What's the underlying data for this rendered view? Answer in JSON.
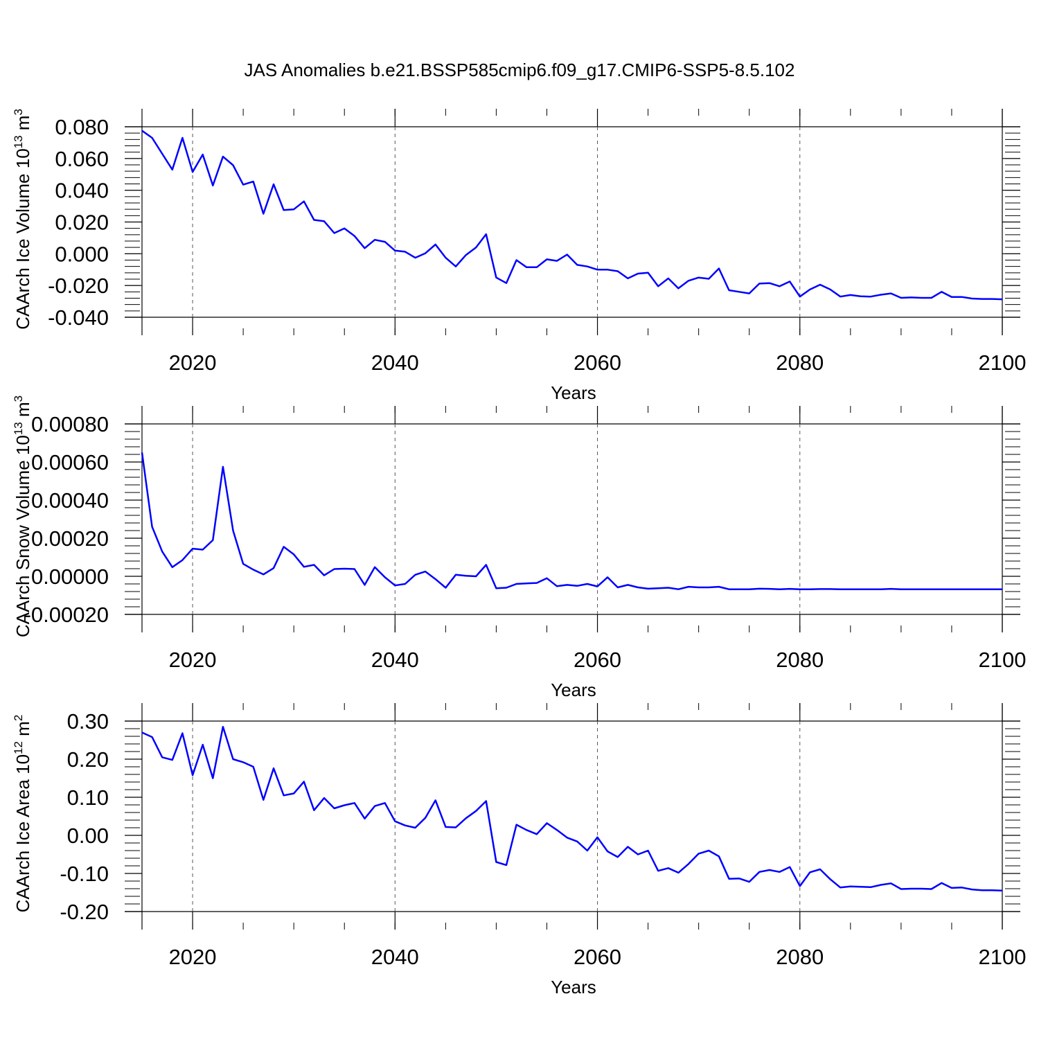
{
  "title": "JAS Anomalies b.e21.BSSP585cmip6.f09_g17.CMIP6-SSP5-8.5.102",
  "series_color": "#0000ff",
  "chart_data": [
    {
      "type": "line",
      "ylabel": {
        "base": "CAArch Ice Volume 10",
        "exp": "13",
        "unit": " m",
        "unit_exp": "3"
      },
      "xlabel": "Years",
      "xlim": [
        2015,
        2100
      ],
      "ylim": [
        -0.04,
        0.08
      ],
      "xticks": [
        2020,
        2040,
        2060,
        2080,
        2100
      ],
      "yticks": [
        -0.04,
        -0.02,
        0.0,
        0.02,
        0.04,
        0.06,
        0.08
      ],
      "ytick_labels": [
        "-0.040",
        "-0.020",
        "0.000",
        "0.020",
        "0.040",
        "0.060",
        "0.080"
      ],
      "x_start": 2015,
      "values": [
        0.0775,
        0.073,
        0.063,
        0.053,
        0.073,
        0.0515,
        0.0625,
        0.043,
        0.0612,
        0.0558,
        0.0435,
        0.0455,
        0.0252,
        0.0438,
        0.0275,
        0.028,
        0.033,
        0.0213,
        0.0205,
        0.013,
        0.016,
        0.0112,
        0.0035,
        0.0088,
        0.0075,
        0.002,
        0.0013,
        -0.0025,
        0.0003,
        0.0058,
        -0.0025,
        -0.008,
        -0.0008,
        0.004,
        0.0123,
        -0.015,
        -0.0185,
        -0.004,
        -0.0085,
        -0.0085,
        -0.0035,
        -0.0045,
        -0.0005,
        -0.007,
        -0.008,
        -0.01,
        -0.01,
        -0.011,
        -0.0155,
        -0.0125,
        -0.012,
        -0.0205,
        -0.0155,
        -0.0218,
        -0.017,
        -0.015,
        -0.0158,
        -0.0093,
        -0.023,
        -0.024,
        -0.025,
        -0.0188,
        -0.0185,
        -0.0205,
        -0.0175,
        -0.027,
        -0.0225,
        -0.0195,
        -0.0225,
        -0.027,
        -0.026,
        -0.0268,
        -0.027,
        -0.0258,
        -0.025,
        -0.0278,
        -0.0275,
        -0.0278,
        -0.0278,
        -0.024,
        -0.0272,
        -0.0272,
        -0.0282,
        -0.0285,
        -0.0285,
        -0.0287
      ]
    },
    {
      "type": "line",
      "ylabel": {
        "base": "CAArch Snow Volume 10",
        "exp": "13",
        "unit": " m",
        "unit_exp": "3"
      },
      "xlabel": "Years",
      "xlim": [
        2015,
        2100
      ],
      "ylim": [
        -0.0002,
        0.0008
      ],
      "xticks": [
        2020,
        2040,
        2060,
        2080,
        2100
      ],
      "yticks": [
        -0.0002,
        0.0,
        0.0002,
        0.0004,
        0.0006,
        0.0008
      ],
      "ytick_labels": [
        "-0.00020",
        "0.00000",
        "0.00020",
        "0.00040",
        "0.00060",
        "0.00080"
      ],
      "x_start": 2015,
      "values": [
        0.00065,
        0.00026,
        0.00013,
        4.8e-05,
        8.5e-05,
        0.000145,
        0.00014,
        0.00019,
        0.000575,
        0.00024,
        6.5e-05,
        3.5e-05,
        1e-05,
        4.3e-05,
        0.000155,
        0.000115,
        5e-05,
        6e-05,
        5e-06,
        3.8e-05,
        4e-05,
        3.8e-05,
        -4.5e-05,
        4.8e-05,
        -5e-06,
        -4.8e-05,
        -4e-05,
        8e-06,
        2.5e-05,
        -1.5e-05,
        -6e-05,
        8e-06,
        3e-06,
        0.0,
        6e-05,
        -6.3e-05,
        -6e-05,
        -4e-05,
        -3.7e-05,
        -3.5e-05,
        -1e-05,
        -5.2e-05,
        -4.5e-05,
        -5e-05,
        -4e-05,
        -5.3e-05,
        -5e-06,
        -5.8e-05,
        -4.5e-05,
        -5.8e-05,
        -6.5e-05,
        -6.3e-05,
        -6e-05,
        -6.8e-05,
        -5.5e-05,
        -5.8e-05,
        -5.8e-05,
        -5.5e-05,
        -6.8e-05,
        -6.8e-05,
        -6.8e-05,
        -6.5e-05,
        -6.6e-05,
        -6.8e-05,
        -6.6e-05,
        -6.8e-05,
        -6.8e-05,
        -6.7e-05,
        -6.7e-05,
        -6.8e-05,
        -6.8e-05,
        -6.8e-05,
        -6.8e-05,
        -6.8e-05,
        -6.6e-05,
        -6.8e-05,
        -6.8e-05,
        -6.8e-05,
        -6.8e-05,
        -6.8e-05,
        -6.8e-05,
        -6.8e-05,
        -6.8e-05,
        -6.8e-05,
        -6.8e-05,
        -6.8e-05
      ]
    },
    {
      "type": "line",
      "ylabel": {
        "base": "CAArch Ice Area 10",
        "exp": "12",
        "unit": " m",
        "unit_exp": "2"
      },
      "xlabel": "Years",
      "xlim": [
        2015,
        2100
      ],
      "ylim": [
        -0.2,
        0.3
      ],
      "xticks": [
        2020,
        2040,
        2060,
        2080,
        2100
      ],
      "yticks": [
        -0.2,
        -0.1,
        0.0,
        0.1,
        0.2,
        0.3
      ],
      "ytick_labels": [
        "-0.20",
        "-0.10",
        "0.00",
        "0.10",
        "0.20",
        "0.30"
      ],
      "x_start": 2015,
      "values": [
        0.27,
        0.258,
        0.205,
        0.198,
        0.268,
        0.158,
        0.238,
        0.15,
        0.285,
        0.2,
        0.192,
        0.18,
        0.093,
        0.176,
        0.105,
        0.11,
        0.141,
        0.066,
        0.098,
        0.071,
        0.079,
        0.085,
        0.044,
        0.077,
        0.085,
        0.037,
        0.026,
        0.02,
        0.046,
        0.092,
        0.022,
        0.021,
        0.045,
        0.064,
        0.09,
        -0.07,
        -0.078,
        0.028,
        0.014,
        0.003,
        0.032,
        0.014,
        -0.006,
        -0.016,
        -0.04,
        -0.005,
        -0.042,
        -0.057,
        -0.03,
        -0.05,
        -0.04,
        -0.093,
        -0.086,
        -0.098,
        -0.075,
        -0.048,
        -0.04,
        -0.055,
        -0.114,
        -0.113,
        -0.122,
        -0.096,
        -0.091,
        -0.096,
        -0.083,
        -0.133,
        -0.097,
        -0.089,
        -0.115,
        -0.137,
        -0.134,
        -0.135,
        -0.136,
        -0.13,
        -0.126,
        -0.141,
        -0.14,
        -0.14,
        -0.141,
        -0.125,
        -0.138,
        -0.137,
        -0.142,
        -0.144,
        -0.144,
        -0.145
      ]
    }
  ]
}
